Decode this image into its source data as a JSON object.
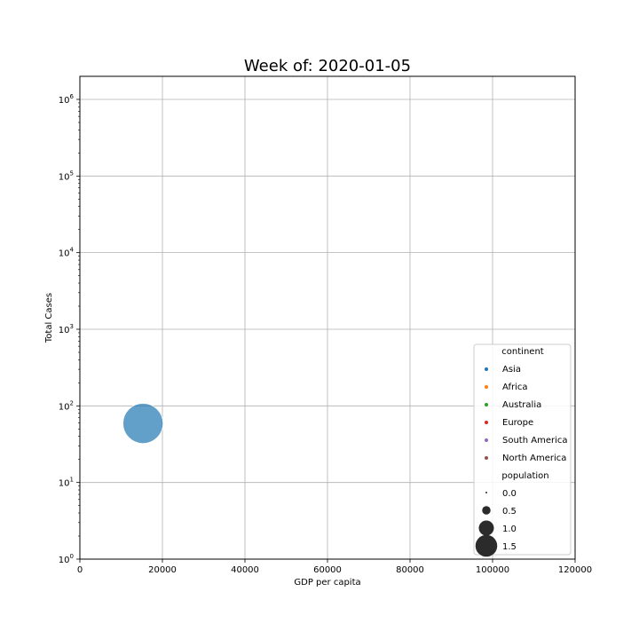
{
  "chart_data": {
    "type": "scatter",
    "title": "Week of: 2020-01-05",
    "xlabel": "GDP per capita",
    "ylabel": "Total Cases",
    "xlim": [
      0,
      120000
    ],
    "ylim": [
      1,
      2000000
    ],
    "yscale": "log",
    "grid": true,
    "x_ticks": [
      {
        "value": 0,
        "label": "0"
      },
      {
        "value": 20000,
        "label": "20000"
      },
      {
        "value": 40000,
        "label": "40000"
      },
      {
        "value": 60000,
        "label": "60000"
      },
      {
        "value": 80000,
        "label": "80000"
      },
      {
        "value": 100000,
        "label": "100000"
      },
      {
        "value": 120000,
        "label": "120000"
      }
    ],
    "y_ticks": [
      {
        "value": 1,
        "base": "10",
        "exp": "0"
      },
      {
        "value": 10,
        "base": "10",
        "exp": "1"
      },
      {
        "value": 100,
        "base": "10",
        "exp": "2"
      },
      {
        "value": 1000,
        "base": "10",
        "exp": "3"
      },
      {
        "value": 10000,
        "base": "10",
        "exp": "4"
      },
      {
        "value": 100000,
        "base": "10",
        "exp": "5"
      },
      {
        "value": 1000000,
        "base": "10",
        "exp": "6"
      }
    ],
    "points": [
      {
        "continent": "Asia",
        "x": 15300,
        "y": 59,
        "population": 1.4
      }
    ],
    "legend": {
      "placement": "lower-right",
      "hue_title": "continent",
      "hue_entries": [
        {
          "label": "Asia",
          "color": "#1f77b4"
        },
        {
          "label": "Africa",
          "color": "#ff7f0e"
        },
        {
          "label": "Australia",
          "color": "#2ca02c"
        },
        {
          "label": "Europe",
          "color": "#d62728"
        },
        {
          "label": "South America",
          "color": "#9467bd"
        },
        {
          "label": "North America",
          "color": "#8c564b"
        }
      ],
      "size_title": "population",
      "size_entries": [
        {
          "label": "0.0",
          "value": 0.0
        },
        {
          "label": "0.5",
          "value": 0.5
        },
        {
          "label": "1.0",
          "value": 1.0
        },
        {
          "label": "1.5",
          "value": 1.5
        }
      ]
    },
    "colors": {
      "grid": "#b0b0b0",
      "axes": "#000000",
      "size_marker": "#2b2b2b",
      "legend_border": "#cccccc"
    }
  }
}
